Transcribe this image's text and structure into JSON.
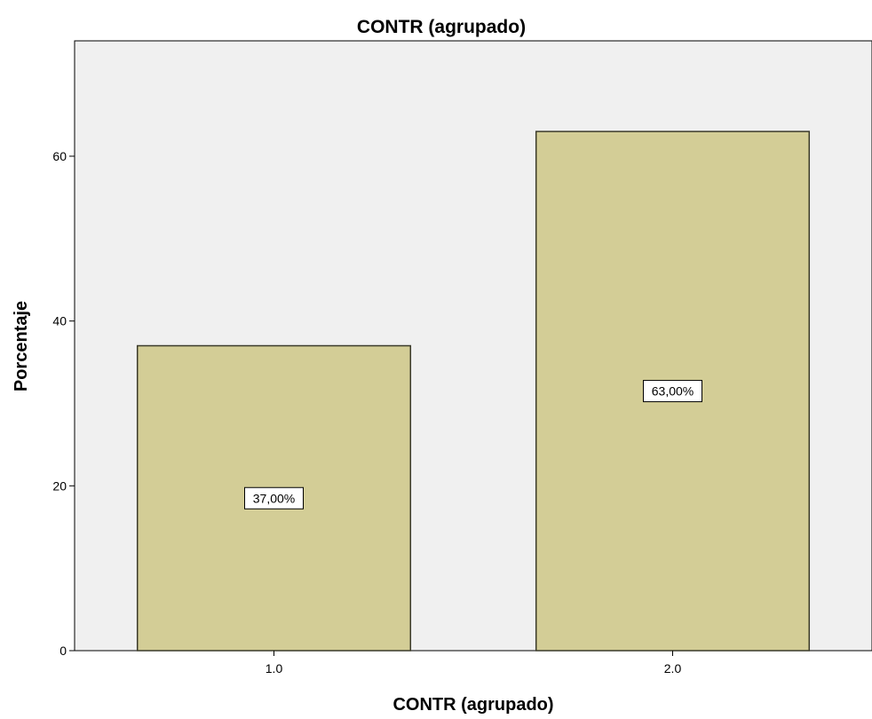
{
  "chart_data": {
    "type": "bar",
    "title": "CONTR (agrupado)",
    "xlabel": "CONTR (agrupado)",
    "ylabel": "Porcentaje",
    "categories": [
      "1.0",
      "2.0"
    ],
    "values": [
      37,
      63
    ],
    "data_labels": [
      "37,00%",
      "63,00%"
    ],
    "yticks": [
      0,
      20,
      40,
      60
    ],
    "ylim": [
      0,
      74
    ],
    "grid": false,
    "colors": {
      "bar_fill": "#d3cd96",
      "bar_stroke": "#3a3a2a",
      "plot_background": "#f0f0f0"
    }
  }
}
